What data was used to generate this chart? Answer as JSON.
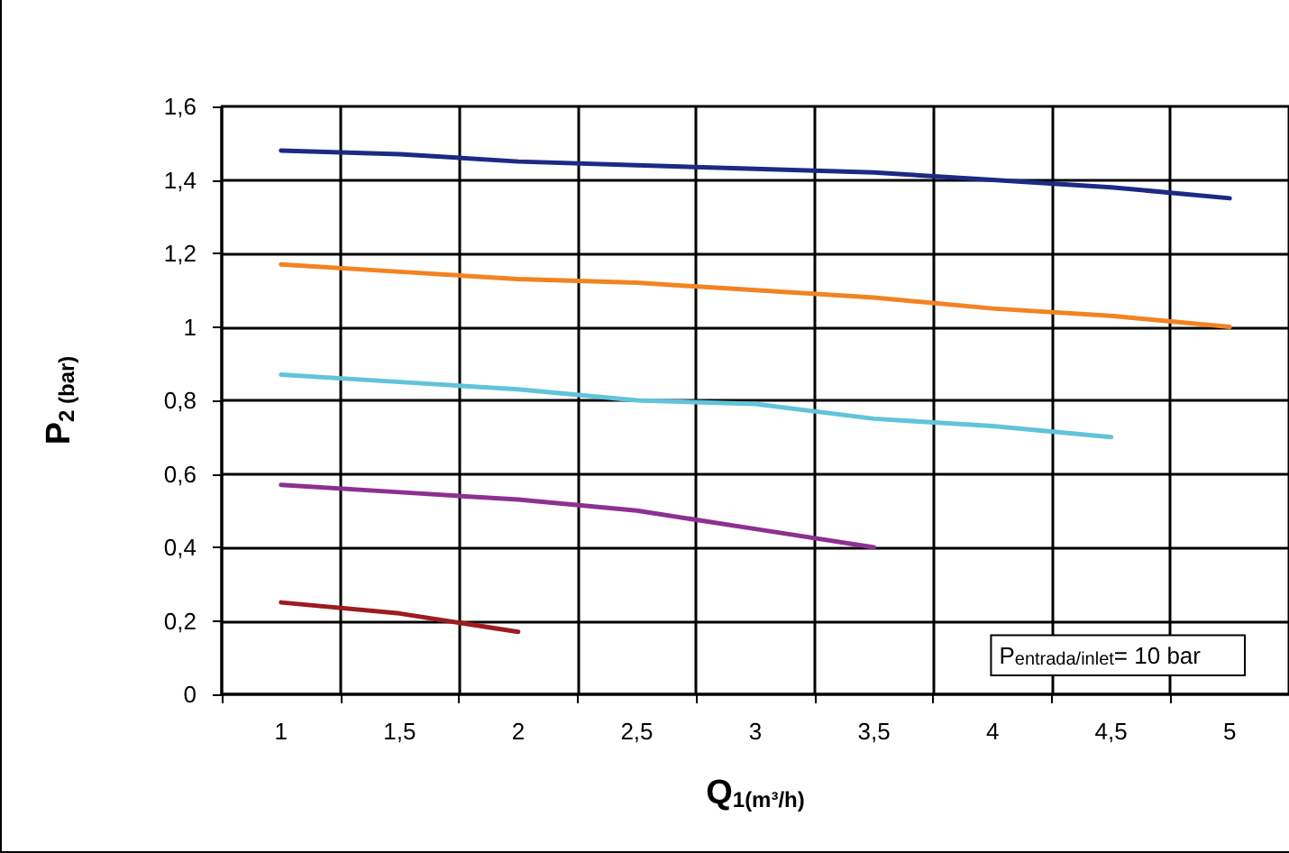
{
  "chart_data": {
    "type": "line",
    "xlabel": "Q$_{1(m³/h)}$",
    "ylabel": "P$_{2 (bar)}$",
    "categories": [
      "1",
      "1,5",
      "2",
      "2,5",
      "3",
      "3,5",
      "4",
      "4,5",
      "5"
    ],
    "series": [
      {
        "color": "#1c2a85",
        "values": [
          1.48,
          1.47,
          1.45,
          1.44,
          1.43,
          1.42,
          1.4,
          1.38,
          1.35
        ]
      },
      {
        "color": "#f28322",
        "values": [
          1.17,
          1.15,
          1.13,
          1.12,
          1.1,
          1.08,
          1.05,
          1.03,
          1.0
        ]
      },
      {
        "color": "#62c3da",
        "values": [
          0.87,
          0.85,
          0.83,
          0.8,
          0.79,
          0.75,
          0.73,
          0.7,
          null
        ]
      },
      {
        "color": "#8e2f92",
        "values": [
          0.57,
          0.55,
          0.53,
          0.5,
          0.45,
          0.4,
          null,
          null,
          null
        ]
      },
      {
        "color": "#9c1c22",
        "values": [
          0.25,
          0.22,
          0.17,
          null,
          null,
          null,
          null,
          null,
          null
        ]
      }
    ],
    "ylim": [
      0,
      1.6
    ],
    "yticks": [
      {
        "value": 0,
        "label": "0"
      },
      {
        "value": 0.2,
        "label": "0,2"
      },
      {
        "value": 0.4,
        "label": "0,4"
      },
      {
        "value": 0.6,
        "label": "0,6"
      },
      {
        "value": 0.8,
        "label": "0,8"
      },
      {
        "value": 1,
        "label": "1"
      },
      {
        "value": 1.2,
        "label": "1,2"
      },
      {
        "value": 1.4,
        "label": "1,4"
      },
      {
        "value": 1.6,
        "label": "1,6"
      }
    ],
    "annotations": [
      "P$_{entrada/inlet}$= 10 bar"
    ],
    "grid": true,
    "marker": "none",
    "line_style": "solid"
  }
}
